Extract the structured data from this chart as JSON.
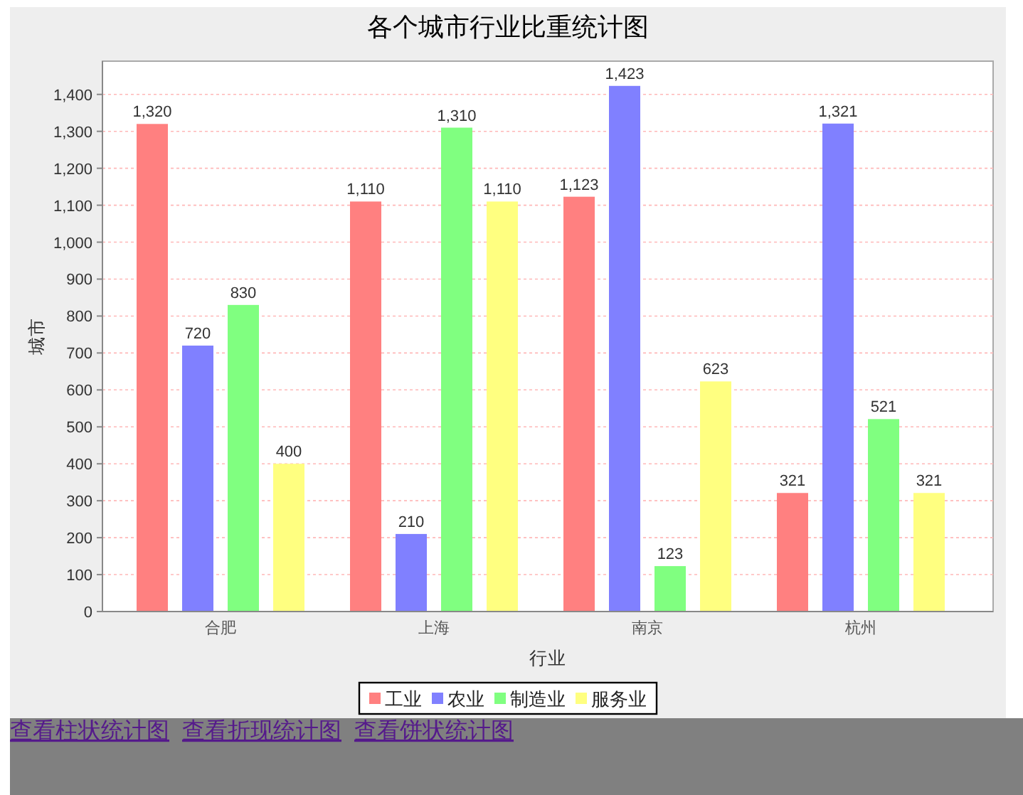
{
  "chart_data": {
    "type": "bar",
    "title": "各个城市行业比重统计图",
    "xlabel": "行业",
    "ylabel": "城市",
    "categories": [
      "合肥",
      "上海",
      "南京",
      "杭州"
    ],
    "series": [
      {
        "name": "工业",
        "color": "#ff8080",
        "values": [
          1320,
          1110,
          1123,
          321
        ],
        "value_labels": [
          "1,320",
          "1,110",
          "1,123",
          "321"
        ]
      },
      {
        "name": "农业",
        "color": "#8080ff",
        "values": [
          720,
          210,
          1423,
          1321
        ],
        "value_labels": [
          "720",
          "210",
          "1,423",
          "1,321"
        ]
      },
      {
        "name": "制造业",
        "color": "#80ff80",
        "values": [
          830,
          1310,
          123,
          521
        ],
        "value_labels": [
          "830",
          "1,310",
          "123",
          "521"
        ]
      },
      {
        "name": "服务业",
        "color": "#ffff80",
        "values": [
          400,
          1110,
          623,
          321
        ],
        "value_labels": [
          "400",
          "1,110",
          "623",
          "321"
        ]
      }
    ],
    "ylim": [
      0,
      1490
    ],
    "yticks": [
      0,
      100,
      200,
      300,
      400,
      500,
      600,
      700,
      800,
      900,
      {
        "value": 1000,
        "label": "1,000"
      },
      {
        "value": 1100,
        "label": "1,100"
      },
      {
        "value": 1200,
        "label": "1,200"
      },
      {
        "value": 1300,
        "label": "1,300"
      },
      {
        "value": 1400,
        "label": "1,400"
      }
    ],
    "grid": "y",
    "legend": "bottom",
    "annotations": [
      "查看柱状统计图",
      "查看折现统计图",
      "查看饼状统计图"
    ]
  }
}
